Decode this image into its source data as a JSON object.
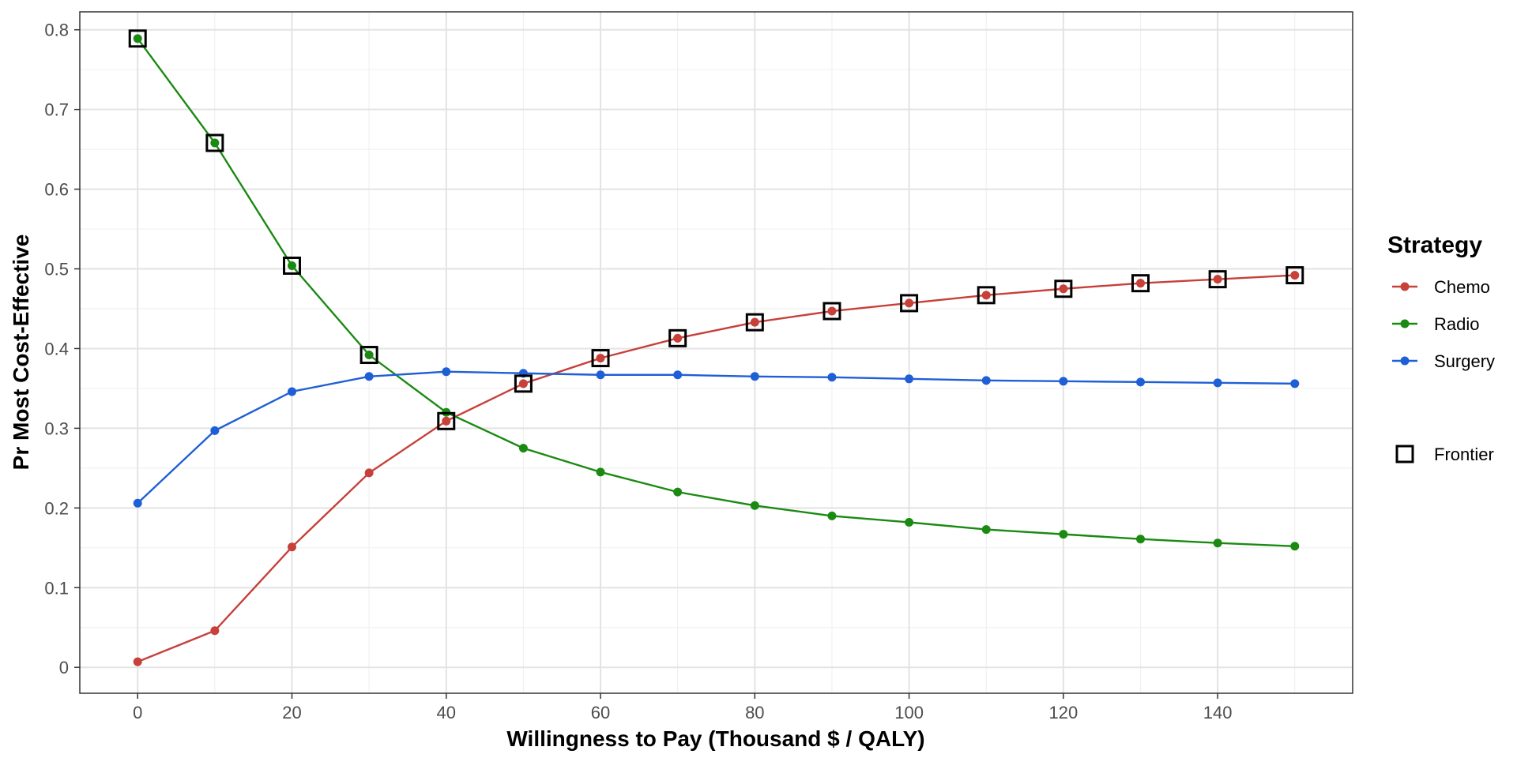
{
  "chart_data": {
    "type": "line",
    "xlabel": "Willingness to Pay (Thousand $ / QALY)",
    "ylabel": "Pr Most Cost-Effective",
    "xlim": [
      -7.5,
      157.5
    ],
    "ylim": [
      -0.0325,
      0.8225
    ],
    "x_ticks": [
      0,
      20,
      40,
      60,
      80,
      100,
      120,
      140
    ],
    "y_ticks": [
      0,
      0.1,
      0.2,
      0.3,
      0.4,
      0.5,
      0.6,
      0.7,
      0.8
    ],
    "x_tick_labels": [
      "0",
      "20",
      "40",
      "60",
      "80",
      "100",
      "120",
      "140"
    ],
    "y_tick_labels": [
      "0",
      "0.1",
      "0.2",
      "0.3",
      "0.4",
      "0.5",
      "0.6",
      "0.7",
      "0.8"
    ],
    "grid": true,
    "legend_position": "right",
    "x": [
      0,
      10,
      20,
      30,
      40,
      50,
      60,
      70,
      80,
      90,
      100,
      110,
      120,
      130,
      140,
      150
    ],
    "series": [
      {
        "name": "Chemo",
        "color": "#c7403a",
        "values": [
          0.007,
          0.046,
          0.151,
          0.244,
          0.309,
          0.356,
          0.388,
          0.413,
          0.433,
          0.447,
          0.457,
          0.467,
          0.475,
          0.482,
          0.487,
          0.492
        ]
      },
      {
        "name": "Radio",
        "color": "#1a8a12",
        "values": [
          0.789,
          0.658,
          0.504,
          0.392,
          0.32,
          0.275,
          0.245,
          0.22,
          0.203,
          0.19,
          0.182,
          0.173,
          0.167,
          0.161,
          0.156,
          0.152
        ]
      },
      {
        "name": "Surgery",
        "color": "#1f5fd6",
        "values": [
          0.206,
          0.297,
          0.346,
          0.365,
          0.371,
          0.369,
          0.367,
          0.367,
          0.365,
          0.364,
          0.362,
          0.36,
          0.359,
          0.358,
          0.357,
          0.356
        ]
      }
    ],
    "frontier": {
      "label": "Frontier",
      "x": [
        0,
        10,
        20,
        30,
        40,
        50,
        60,
        70,
        80,
        90,
        100,
        110,
        120,
        130,
        140,
        150
      ],
      "y": [
        0.789,
        0.658,
        0.504,
        0.392,
        0.309,
        0.356,
        0.388,
        0.413,
        0.433,
        0.447,
        0.457,
        0.467,
        0.475,
        0.482,
        0.487,
        0.492
      ]
    },
    "legend": {
      "title": "Strategy",
      "items": [
        "Chemo",
        "Radio",
        "Surgery"
      ],
      "frontier_label": "Frontier"
    }
  }
}
